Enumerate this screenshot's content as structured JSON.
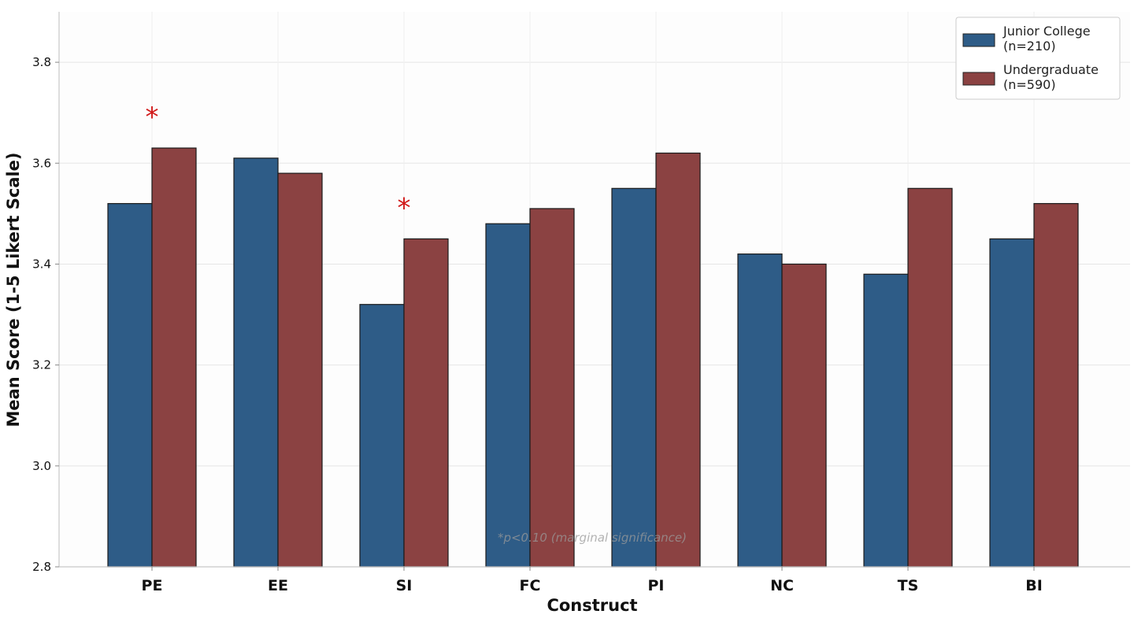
{
  "chart_data": {
    "type": "bar",
    "title": "",
    "xlabel": "Construct",
    "ylabel": "Mean Score (1-5 Likert Scale)",
    "categories": [
      "PE",
      "EE",
      "SI",
      "FC",
      "PI",
      "NC",
      "TS",
      "BI"
    ],
    "series": [
      {
        "name": "Junior College\n(n=210)",
        "color": "#2e5c87",
        "values": [
          3.52,
          3.61,
          3.32,
          3.48,
          3.55,
          3.42,
          3.38,
          3.45
        ]
      },
      {
        "name": "Undergraduate\n(n=590)",
        "color": "#8b4242",
        "values": [
          3.63,
          3.58,
          3.45,
          3.51,
          3.62,
          3.4,
          3.55,
          3.52
        ]
      }
    ],
    "ylim": [
      2.8,
      3.9
    ],
    "yticks": [
      2.8,
      3.0,
      3.2,
      3.4,
      3.6,
      3.8
    ],
    "ytick_labels": [
      "2.8",
      "3.0",
      "3.2",
      "3.4",
      "3.6",
      "3.8"
    ],
    "grid": true,
    "legend_position": "top-right",
    "annotations": [
      {
        "category": "PE",
        "text": "*"
      },
      {
        "category": "SI",
        "text": "*"
      }
    ],
    "footnote": "*p<0.10 (marginal significance)"
  }
}
